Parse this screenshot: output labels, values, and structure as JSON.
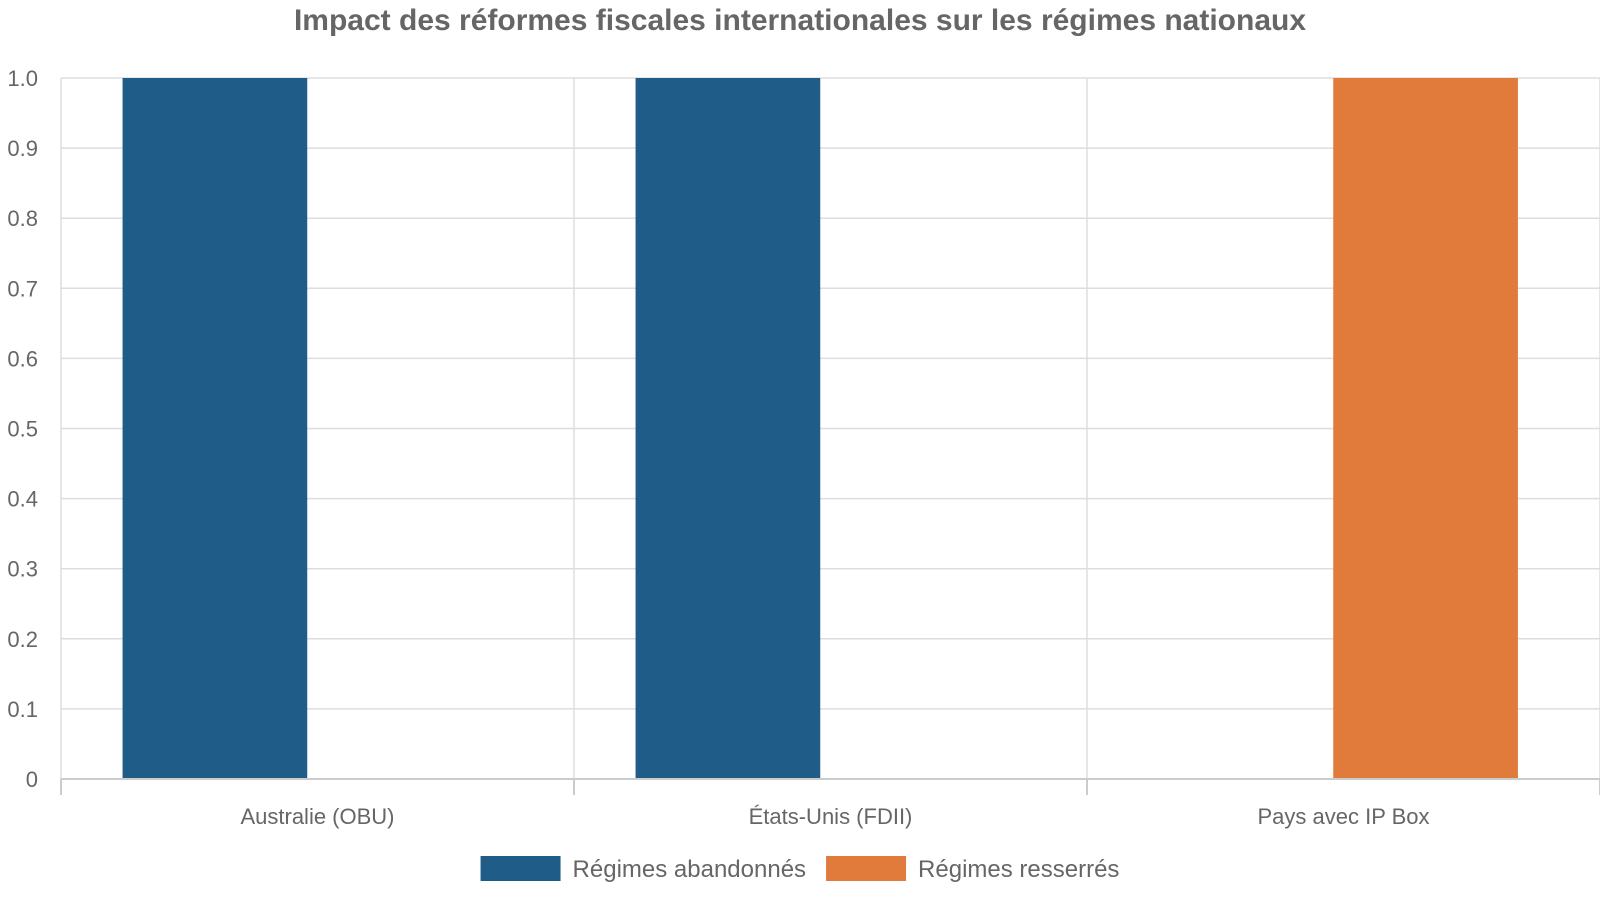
{
  "chart_data": {
    "type": "bar",
    "title": "Impact des réformes fiscales internationales sur les régimes nationaux",
    "xlabel": "",
    "ylabel": "",
    "categories": [
      "Australie (OBU)",
      "États-Unis (FDII)",
      "Pays avec IP Box"
    ],
    "series": [
      {
        "name": "Régimes abandonnés",
        "color": "#1f5c87",
        "values": [
          1,
          1,
          0
        ]
      },
      {
        "name": "Régimes resserrés",
        "color": "#e07b3b",
        "values": [
          0,
          0,
          1
        ]
      }
    ],
    "ylim": [
      0,
      1
    ],
    "yticks": [
      "0",
      "0.1",
      "0.2",
      "0.3",
      "0.4",
      "0.5",
      "0.6",
      "0.7",
      "0.8",
      "0.9",
      "1.0"
    ],
    "grid": true,
    "legend_position": "bottom-center"
  }
}
